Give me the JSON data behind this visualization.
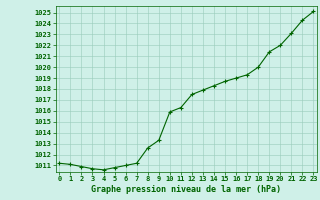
{
  "x": [
    0,
    1,
    2,
    3,
    4,
    5,
    6,
    7,
    8,
    9,
    10,
    11,
    12,
    13,
    14,
    15,
    16,
    17,
    18,
    19,
    20,
    21,
    22,
    23
  ],
  "y": [
    1011.2,
    1011.1,
    1010.9,
    1010.7,
    1010.6,
    1010.8,
    1011.0,
    1011.2,
    1012.6,
    1013.3,
    1015.9,
    1016.3,
    1017.5,
    1017.9,
    1018.3,
    1018.7,
    1019.0,
    1019.3,
    1020.0,
    1021.4,
    1022.0,
    1023.1,
    1024.3,
    1025.1
  ],
  "ylim_min": 1010.4,
  "ylim_max": 1025.6,
  "xlim_min": -0.3,
  "xlim_max": 23.3,
  "yticks": [
    1011,
    1012,
    1013,
    1014,
    1015,
    1016,
    1017,
    1018,
    1019,
    1020,
    1021,
    1022,
    1023,
    1024,
    1025
  ],
  "xticks": [
    0,
    1,
    2,
    3,
    4,
    5,
    6,
    7,
    8,
    9,
    10,
    11,
    12,
    13,
    14,
    15,
    16,
    17,
    18,
    19,
    20,
    21,
    22,
    23
  ],
  "line_color": "#006400",
  "marker": "+",
  "bg_color": "#cff0e8",
  "grid_color": "#99ccbb",
  "xlabel": "Graphe pression niveau de la mer (hPa)",
  "tick_color": "#006400",
  "tick_fontsize": 5,
  "xlabel_fontsize": 6,
  "linewidth": 0.8,
  "markersize": 3.5,
  "markeredgewidth": 0.8
}
